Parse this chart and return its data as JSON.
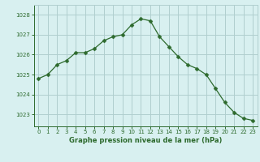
{
  "x": [
    0,
    1,
    2,
    3,
    4,
    5,
    6,
    7,
    8,
    9,
    10,
    11,
    12,
    13,
    14,
    15,
    16,
    17,
    18,
    19,
    20,
    21,
    22,
    23
  ],
  "y": [
    1024.8,
    1025.0,
    1025.5,
    1025.7,
    1026.1,
    1026.1,
    1026.3,
    1026.7,
    1026.9,
    1027.0,
    1027.5,
    1027.8,
    1027.7,
    1026.9,
    1026.4,
    1025.9,
    1025.5,
    1025.3,
    1025.0,
    1024.3,
    1023.6,
    1023.1,
    1022.8,
    1022.7
  ],
  "line_color": "#2d6a2d",
  "marker": "D",
  "marker_size": 2.5,
  "bg_color": "#d8f0f0",
  "grid_color": "#b0cece",
  "tick_label_color": "#2d6a2d",
  "xlabel": "Graphe pression niveau de la mer (hPa)",
  "xlabel_color": "#2d6a2d",
  "yticks": [
    1023,
    1024,
    1025,
    1026,
    1027,
    1028
  ],
  "ylim": [
    1022.4,
    1028.5
  ],
  "xlim": [
    -0.5,
    23.5
  ],
  "xticks": [
    0,
    1,
    2,
    3,
    4,
    5,
    6,
    7,
    8,
    9,
    10,
    11,
    12,
    13,
    14,
    15,
    16,
    17,
    18,
    19,
    20,
    21,
    22,
    23
  ]
}
